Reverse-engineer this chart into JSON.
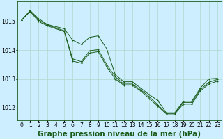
{
  "title": "Graphe pression niveau de la mer (hPa)",
  "background_color": "#cceeff",
  "grid_color": "#b0d8cc",
  "line_color": "#1a5c1a",
  "hours": [
    0,
    1,
    2,
    3,
    4,
    5,
    6,
    7,
    8,
    9,
    10,
    11,
    12,
    13,
    14,
    15,
    16,
    17,
    18,
    19,
    20,
    21,
    22,
    23
  ],
  "series1": [
    1015.05,
    1015.38,
    1015.1,
    1014.9,
    1014.82,
    1014.75,
    1014.35,
    1014.2,
    1014.45,
    1014.5,
    1014.05,
    1013.15,
    1012.9,
    1012.9,
    1012.68,
    1012.45,
    1012.25,
    1011.82,
    1011.82,
    1012.22,
    1012.22,
    1012.68,
    1013.0,
    1013.02
  ],
  "series2": [
    1015.05,
    1015.38,
    1015.05,
    1014.88,
    1014.78,
    1014.68,
    1013.7,
    1013.6,
    1013.98,
    1014.02,
    1013.5,
    1013.08,
    1012.82,
    1012.82,
    1012.62,
    1012.38,
    1012.1,
    1011.8,
    1011.8,
    1012.18,
    1012.18,
    1012.62,
    1012.88,
    1012.98
  ],
  "series3": [
    1015.05,
    1015.35,
    1015.0,
    1014.85,
    1014.75,
    1014.65,
    1013.62,
    1013.55,
    1013.9,
    1013.95,
    1013.42,
    1013.0,
    1012.78,
    1012.78,
    1012.58,
    1012.32,
    1012.05,
    1011.78,
    1011.78,
    1012.12,
    1012.12,
    1012.58,
    1012.82,
    1012.92
  ],
  "ylim": [
    1011.55,
    1015.7
  ],
  "yticks": [
    1012,
    1013,
    1014,
    1015
  ],
  "title_fontsize": 7.5,
  "tick_fontsize": 5.5
}
